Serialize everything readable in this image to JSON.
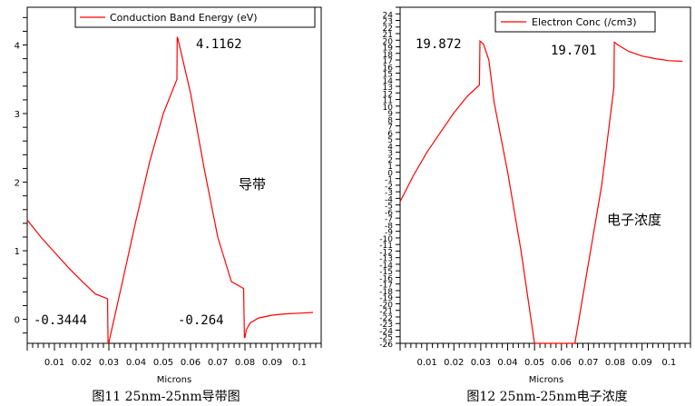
{
  "chart_data": [
    {
      "type": "line",
      "xlabel": "Microns",
      "xticks": [
        "0.01",
        "0.02",
        "0.03",
        "0.04",
        "0.05",
        "0.06",
        "0.07",
        "0.08",
        "0.09",
        "0.1"
      ],
      "yticks": [
        "0",
        "1",
        "2",
        "3",
        "4"
      ],
      "xlim": [
        0,
        0.108
      ],
      "ylim": [
        -0.35,
        4.55
      ],
      "legend": "Conduction Band Energy (eV)",
      "legend_position": "top-right",
      "color": "#ff0000",
      "series": [
        {
          "name": "Conduction Band Energy (eV)",
          "x": [
            0.0,
            0.005,
            0.01,
            0.015,
            0.02,
            0.025,
            0.0295,
            0.0297,
            0.03,
            0.0302,
            0.035,
            0.04,
            0.045,
            0.05,
            0.055,
            0.0551,
            0.0553,
            0.06,
            0.065,
            0.07,
            0.075,
            0.0795,
            0.0798,
            0.08,
            0.0805,
            0.082,
            0.085,
            0.09,
            0.095,
            0.1,
            0.105
          ],
          "y": [
            1.45,
            1.2,
            0.98,
            0.76,
            0.56,
            0.37,
            0.3,
            -0.3444,
            -0.34,
            -0.3,
            0.55,
            1.45,
            2.3,
            3.0,
            3.5,
            4.1162,
            4.1,
            3.3,
            2.2,
            1.2,
            0.55,
            0.45,
            -0.264,
            -0.264,
            -0.15,
            -0.05,
            0.02,
            0.06,
            0.08,
            0.09,
            0.1
          ]
        }
      ],
      "annotations": [
        "4.1162",
        "-0.3444",
        "-0.264",
        "导带"
      ],
      "caption": "图11 25nm-25nm导带图"
    },
    {
      "type": "line",
      "xlabel": "Microns",
      "xticks": [
        "0.01",
        "0.02",
        "0.03",
        "0.04",
        "0.05",
        "0.06",
        "0.07",
        "0.08",
        "0.09",
        "0.1"
      ],
      "yticks": [
        "24",
        "23",
        "22",
        "21",
        "20",
        "19",
        "18",
        "17",
        "16",
        "15",
        "14",
        "13",
        "12",
        "11",
        "10",
        "9",
        "8",
        "7",
        "6",
        "5",
        "4",
        "3",
        "2",
        "1",
        "0",
        "-1",
        "-2",
        "-3",
        "-4",
        "-5",
        "-6",
        "-7",
        "-8",
        "-9",
        "-10",
        "-11",
        "-12",
        "-13",
        "-14",
        "-15",
        "-16",
        "-17",
        "-18",
        "-19",
        "-20",
        "-21",
        "-22",
        "-23",
        "-24",
        "-25",
        "-26"
      ],
      "xlim": [
        0,
        0.108
      ],
      "ylim": [
        -26,
        25
      ],
      "legend": "Electron Conc (/cm3)",
      "legend_position": "top-right",
      "color": "#ff0000",
      "series": [
        {
          "name": "Electron Conc (/cm3)",
          "x": [
            0.0,
            0.005,
            0.01,
            0.015,
            0.02,
            0.025,
            0.0295,
            0.0297,
            0.031,
            0.033,
            0.035,
            0.04,
            0.045,
            0.05,
            0.065,
            0.07,
            0.075,
            0.0795,
            0.0797,
            0.081,
            0.085,
            0.09,
            0.095,
            0.1,
            0.105
          ],
          "y": [
            -4.5,
            -0.5,
            3.0,
            6.0,
            9.0,
            11.5,
            13.2,
            19.872,
            19.4,
            17.0,
            10.5,
            0.0,
            -12.0,
            -26.0,
            -26.0,
            -14.0,
            -2.0,
            12.8,
            19.701,
            19.3,
            18.3,
            17.6,
            17.2,
            16.9,
            16.8
          ]
        }
      ],
      "annotations": [
        "19.872",
        "19.701",
        "电子浓度"
      ],
      "caption": "图12 25nm-25nm电子浓度"
    }
  ]
}
